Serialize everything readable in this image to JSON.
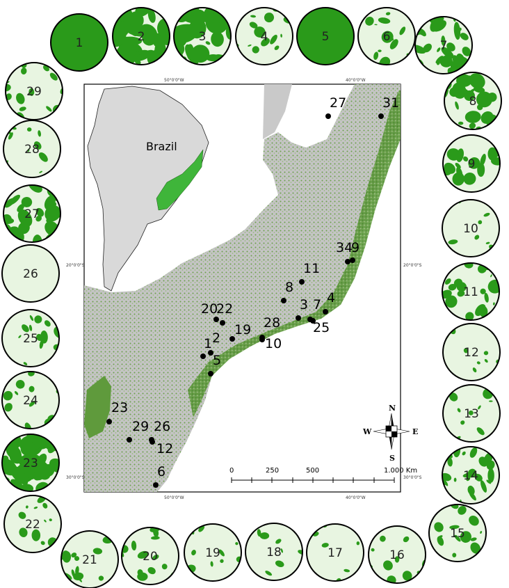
{
  "map": {
    "country_label": "Brazil",
    "graticule": {
      "lon_top": [
        "50°0'0\"W",
        "40°0'0\"W"
      ],
      "lon_bottom": [
        "50°0'0\"W",
        "40°0'0\"W"
      ],
      "lat_left": [
        "20°0'0\"S",
        "30°0'0\"S"
      ],
      "lat_right": [
        "20°0'0\"S",
        "30°0'0\"S"
      ]
    },
    "compass": {
      "n": "N",
      "s": "S",
      "e": "E",
      "w": "W"
    },
    "scale_bar": {
      "ticks": [
        "0",
        "250",
        "500",
        "1.000 Km"
      ]
    },
    "sites": [
      {
        "label": "27"
      },
      {
        "label": "31"
      },
      {
        "label": "34"
      },
      {
        "label": "9"
      },
      {
        "label": "11"
      },
      {
        "label": "8"
      },
      {
        "label": "3"
      },
      {
        "label": "7"
      },
      {
        "label": "4"
      },
      {
        "label": "25"
      },
      {
        "label": "20"
      },
      {
        "label": "22"
      },
      {
        "label": "19"
      },
      {
        "label": "28"
      },
      {
        "label": "10"
      },
      {
        "label": "1"
      },
      {
        "label": "2"
      },
      {
        "label": "5"
      },
      {
        "label": "23"
      },
      {
        "label": "29"
      },
      {
        "label": "26"
      },
      {
        "label": "12"
      },
      {
        "label": "6"
      }
    ]
  },
  "landscapes": [
    {
      "label": "1",
      "cover": 1.0
    },
    {
      "label": "2",
      "cover": 0.92
    },
    {
      "label": "3",
      "cover": 0.78
    },
    {
      "label": "4",
      "cover": 0.2
    },
    {
      "label": "5",
      "cover": 1.0
    },
    {
      "label": "6",
      "cover": 0.22
    },
    {
      "label": "7",
      "cover": 0.62
    },
    {
      "label": "8",
      "cover": 0.45
    },
    {
      "label": "9",
      "cover": 0.3
    },
    {
      "label": "10",
      "cover": 0.1
    },
    {
      "label": "11",
      "cover": 0.35
    },
    {
      "label": "12",
      "cover": 0.12
    },
    {
      "label": "13",
      "cover": 0.14
    },
    {
      "label": "14",
      "cover": 0.45
    },
    {
      "label": "15",
      "cover": 0.2
    },
    {
      "label": "16",
      "cover": 0.12
    },
    {
      "label": "17",
      "cover": 0.04
    },
    {
      "label": "18",
      "cover": 0.06
    },
    {
      "label": "19",
      "cover": 0.08
    },
    {
      "label": "20",
      "cover": 0.25
    },
    {
      "label": "21",
      "cover": 0.2
    },
    {
      "label": "22",
      "cover": 0.18
    },
    {
      "label": "23",
      "cover": 0.85
    },
    {
      "label": "24",
      "cover": 0.2
    },
    {
      "label": "25",
      "cover": 0.25
    },
    {
      "label": "26",
      "cover": 0.0
    },
    {
      "label": "27",
      "cover": 0.55
    },
    {
      "label": "28",
      "cover": 0.18
    },
    {
      "label": "29",
      "cover": 0.22
    }
  ],
  "colors": {
    "forest_dark": "#2a9a1a",
    "forest_light": "#e8f5e1",
    "land_gray": "#c9c9c9",
    "forest_map": "#5e9b3a",
    "atlantic_forest_inset": "#3fb53a",
    "ocean": "#ffffff"
  }
}
